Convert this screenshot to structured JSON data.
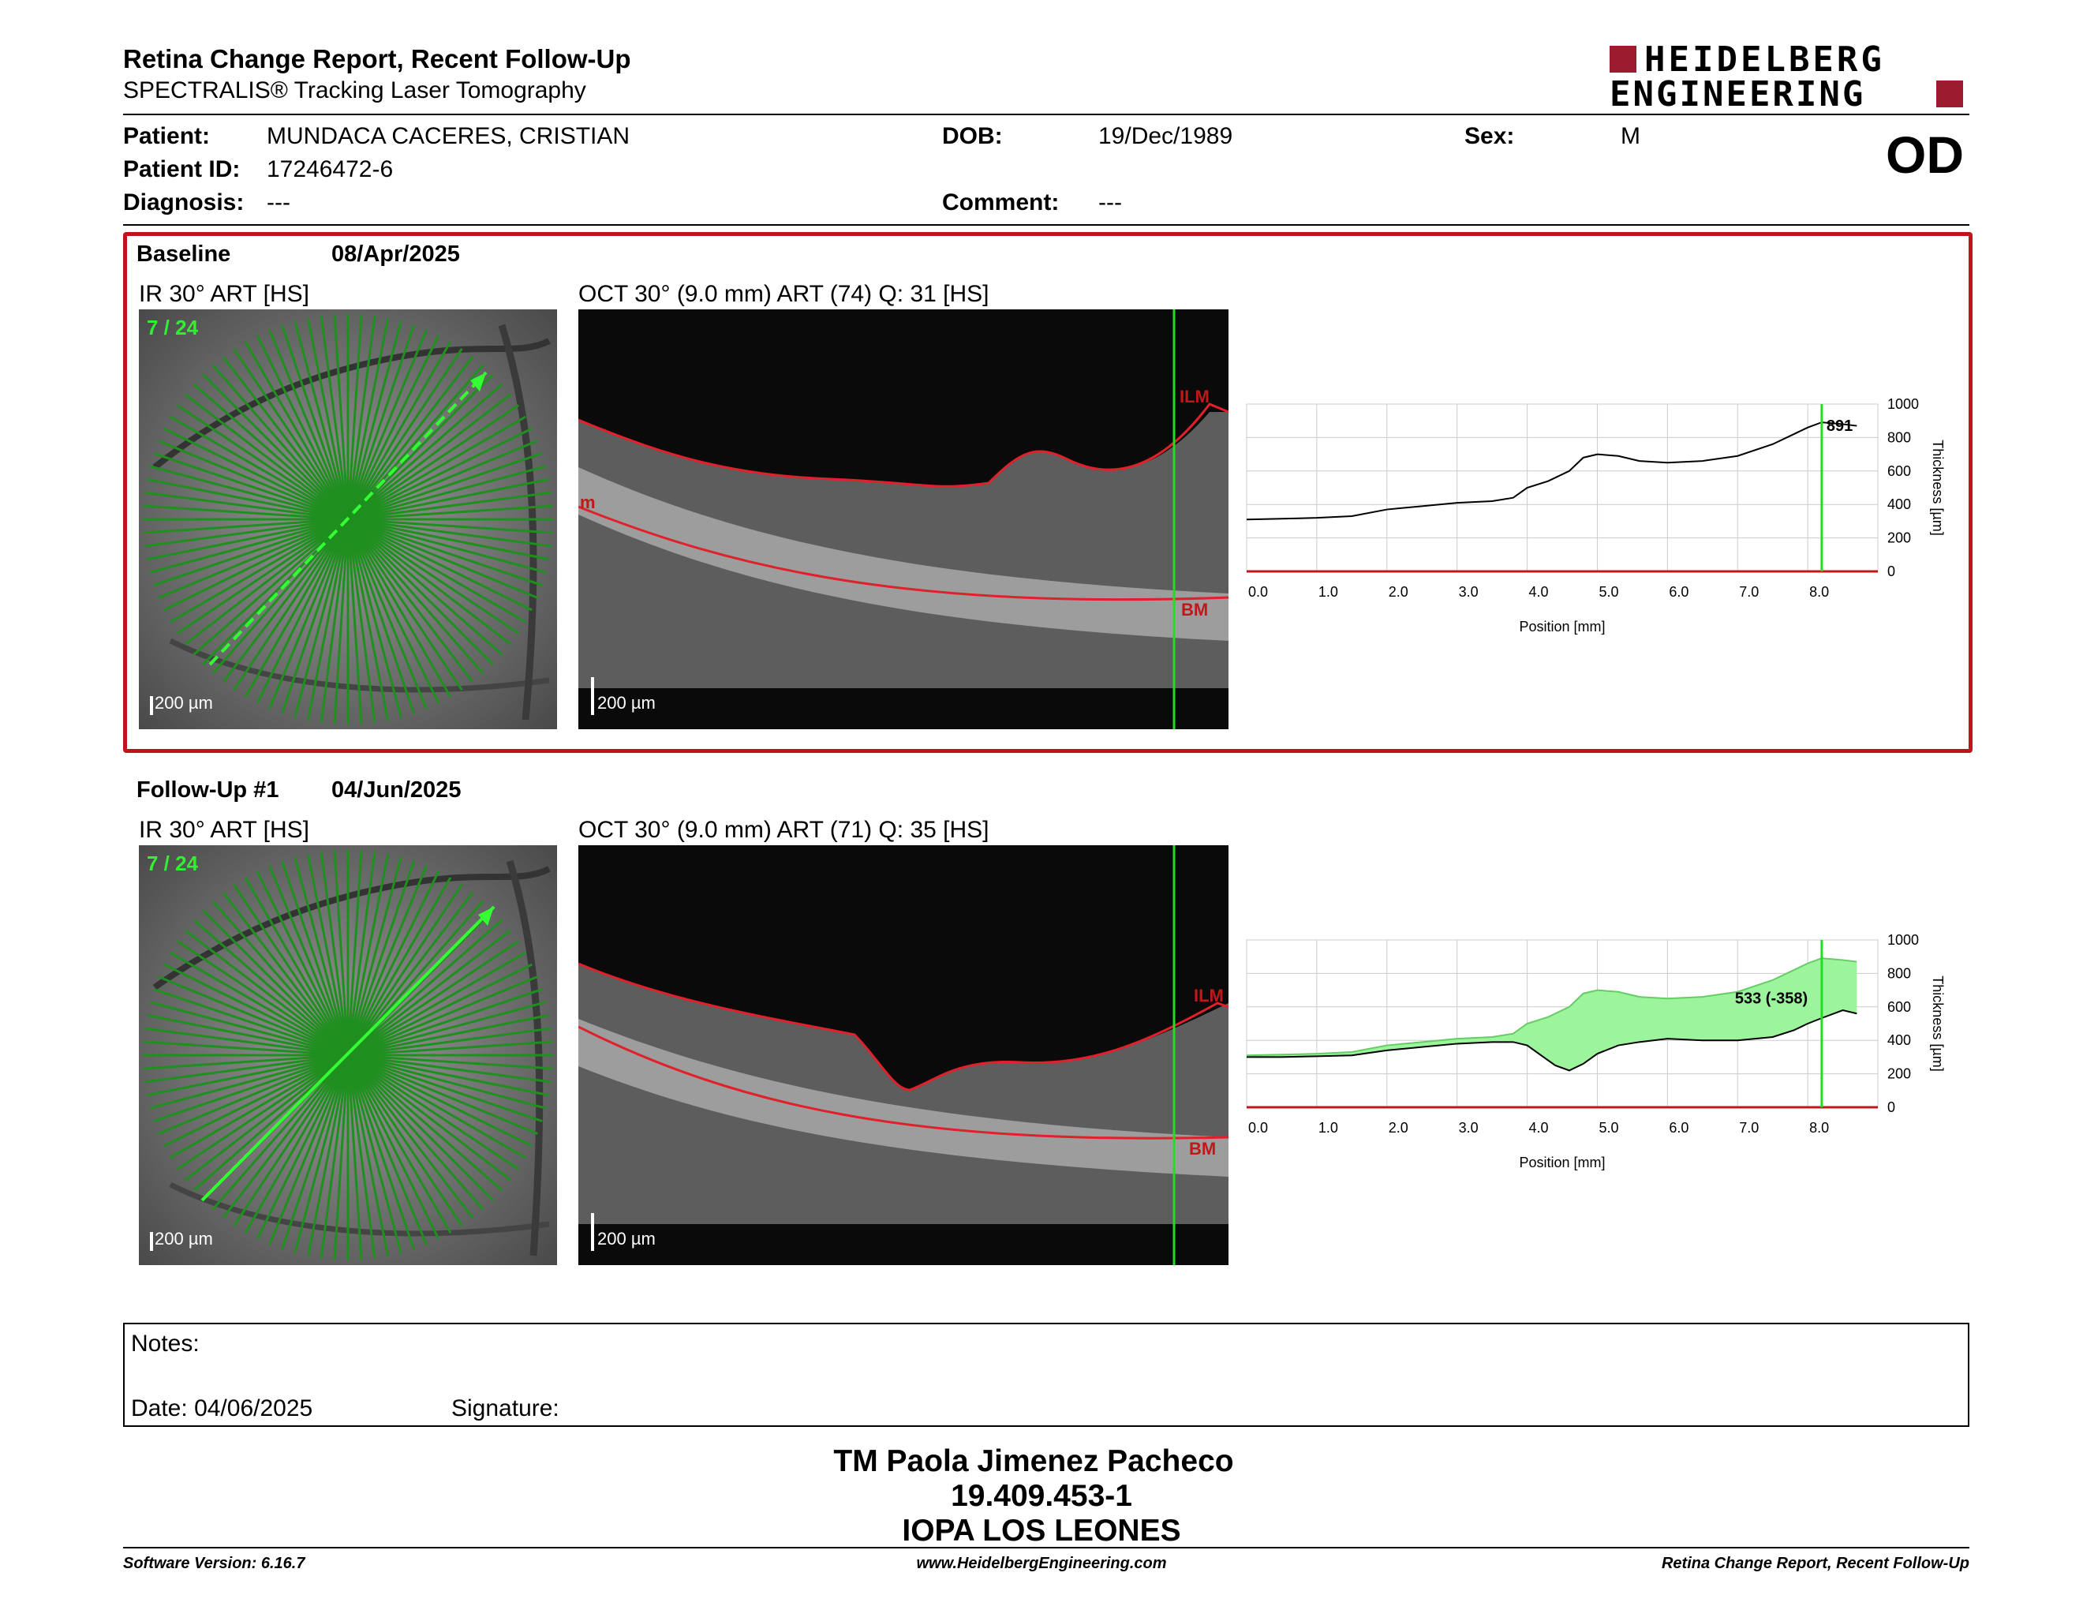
{
  "header": {
    "title": "Retina Change Report, Recent Follow-Up",
    "subtitle": "SPECTRALIS® Tracking Laser Tomography",
    "logo_line1": "HEIDELBERG",
    "logo_line2": "ENGINEERING",
    "eye": "OD"
  },
  "patient": {
    "name_label": "Patient:",
    "name": "MUNDACA CACERES, CRISTIAN",
    "id_label": "Patient ID:",
    "id": "17246472-6",
    "diagnosis_label": "Diagnosis:",
    "diagnosis": "---",
    "dob_label": "DOB:",
    "dob": "19/Dec/1989",
    "comment_label": "Comment:",
    "comment": "---",
    "sex_label": "Sex:",
    "sex": "M"
  },
  "baseline": {
    "label": "Baseline",
    "date": "08/Apr/2025",
    "ir_title": "IR 30° ART [HS]",
    "oct_title": "OCT 30° (9.0 mm) ART (74) Q: 31 [HS]",
    "scan_index": "7 / 24",
    "scale": "200 µm",
    "ilm": "ILM",
    "bm": "BM",
    "side_tag": "m",
    "readout": "891"
  },
  "followup": {
    "label": "Follow-Up #1",
    "date": "04/Jun/2025",
    "ir_title": "IR 30° ART [HS]",
    "oct_title": "OCT 30° (9.0 mm) ART (71) Q: 35 [HS]",
    "scan_index": "7 / 24",
    "scale": "200 µm",
    "ilm": "ILM",
    "bm": "BM",
    "readout": "533 (-358)"
  },
  "chart_data": [
    {
      "type": "line",
      "xlabel": "Position [mm]",
      "ylabel": "Thickness [µm]",
      "xlim": [
        0,
        9
      ],
      "ylim": [
        0,
        1000
      ],
      "x_ticks": [
        "0.0",
        "1.0",
        "2.0",
        "3.0",
        "4.0",
        "5.0",
        "6.0",
        "7.0",
        "8.0"
      ],
      "y_ticks": [
        "0",
        "200",
        "400",
        "600",
        "800",
        "1000"
      ],
      "cursor_x": 8.2,
      "series": [
        {
          "x": [
            0,
            0.5,
            1,
            1.5,
            2,
            2.5,
            3,
            3.5,
            3.8,
            4,
            4.3,
            4.6,
            4.8,
            5,
            5.3,
            5.6,
            6,
            6.5,
            7,
            7.5,
            7.8,
            8,
            8.2,
            8.5,
            8.7
          ],
          "values": [
            310,
            315,
            320,
            330,
            370,
            390,
            410,
            420,
            440,
            500,
            540,
            600,
            680,
            700,
            690,
            660,
            650,
            660,
            690,
            760,
            820,
            860,
            891,
            880,
            870
          ]
        }
      ]
    },
    {
      "type": "area",
      "xlabel": "Position [mm]",
      "ylabel": "Thickness [µm]",
      "xlim": [
        0,
        9
      ],
      "ylim": [
        0,
        1000
      ],
      "x_ticks": [
        "0.0",
        "1.0",
        "2.0",
        "3.0",
        "4.0",
        "5.0",
        "6.0",
        "7.0",
        "8.0"
      ],
      "y_ticks": [
        "0",
        "200",
        "400",
        "600",
        "800",
        "1000"
      ],
      "cursor_x": 8.2,
      "series": [
        {
          "x": [
            0,
            0.5,
            1,
            1.5,
            2,
            2.5,
            3,
            3.5,
            3.8,
            4,
            4.3,
            4.6,
            4.8,
            5,
            5.3,
            5.6,
            6,
            6.5,
            7,
            7.5,
            7.8,
            8,
            8.2,
            8.5,
            8.7
          ],
          "values": [
            310,
            315,
            320,
            330,
            370,
            390,
            410,
            420,
            440,
            500,
            540,
            600,
            680,
            700,
            690,
            660,
            650,
            660,
            690,
            760,
            820,
            860,
            891,
            880,
            870
          ]
        },
        {
          "x": [
            0,
            0.5,
            1,
            1.5,
            2,
            2.5,
            3,
            3.5,
            3.8,
            4,
            4.2,
            4.4,
            4.6,
            4.8,
            5,
            5.3,
            5.6,
            6,
            6.5,
            7,
            7.5,
            7.8,
            8,
            8.2,
            8.5,
            8.7
          ],
          "values": [
            300,
            300,
            305,
            310,
            340,
            360,
            380,
            390,
            390,
            370,
            310,
            250,
            220,
            260,
            320,
            370,
            390,
            410,
            400,
            400,
            420,
            460,
            500,
            533,
            580,
            560
          ]
        }
      ]
    }
  ],
  "notes": {
    "notes_label": "Notes:",
    "date_label": "Date:",
    "date": "04/06/2025",
    "signature_label": "Signature:"
  },
  "signatory": {
    "name": "TM Paola Jimenez Pacheco",
    "rut": "19.409.453-1",
    "org": "IOPA LOS LEONES"
  },
  "footer": {
    "version": "Software Version: 6.16.7",
    "url": "www.HeidelbergEngineering.com",
    "report": "Retina Change Report, Recent Follow-Up"
  },
  "colors": {
    "accent_red": "#9b1c2e",
    "frame_red": "#c0141c",
    "green": "#22cc22",
    "fill_green": "#9cf59c"
  }
}
